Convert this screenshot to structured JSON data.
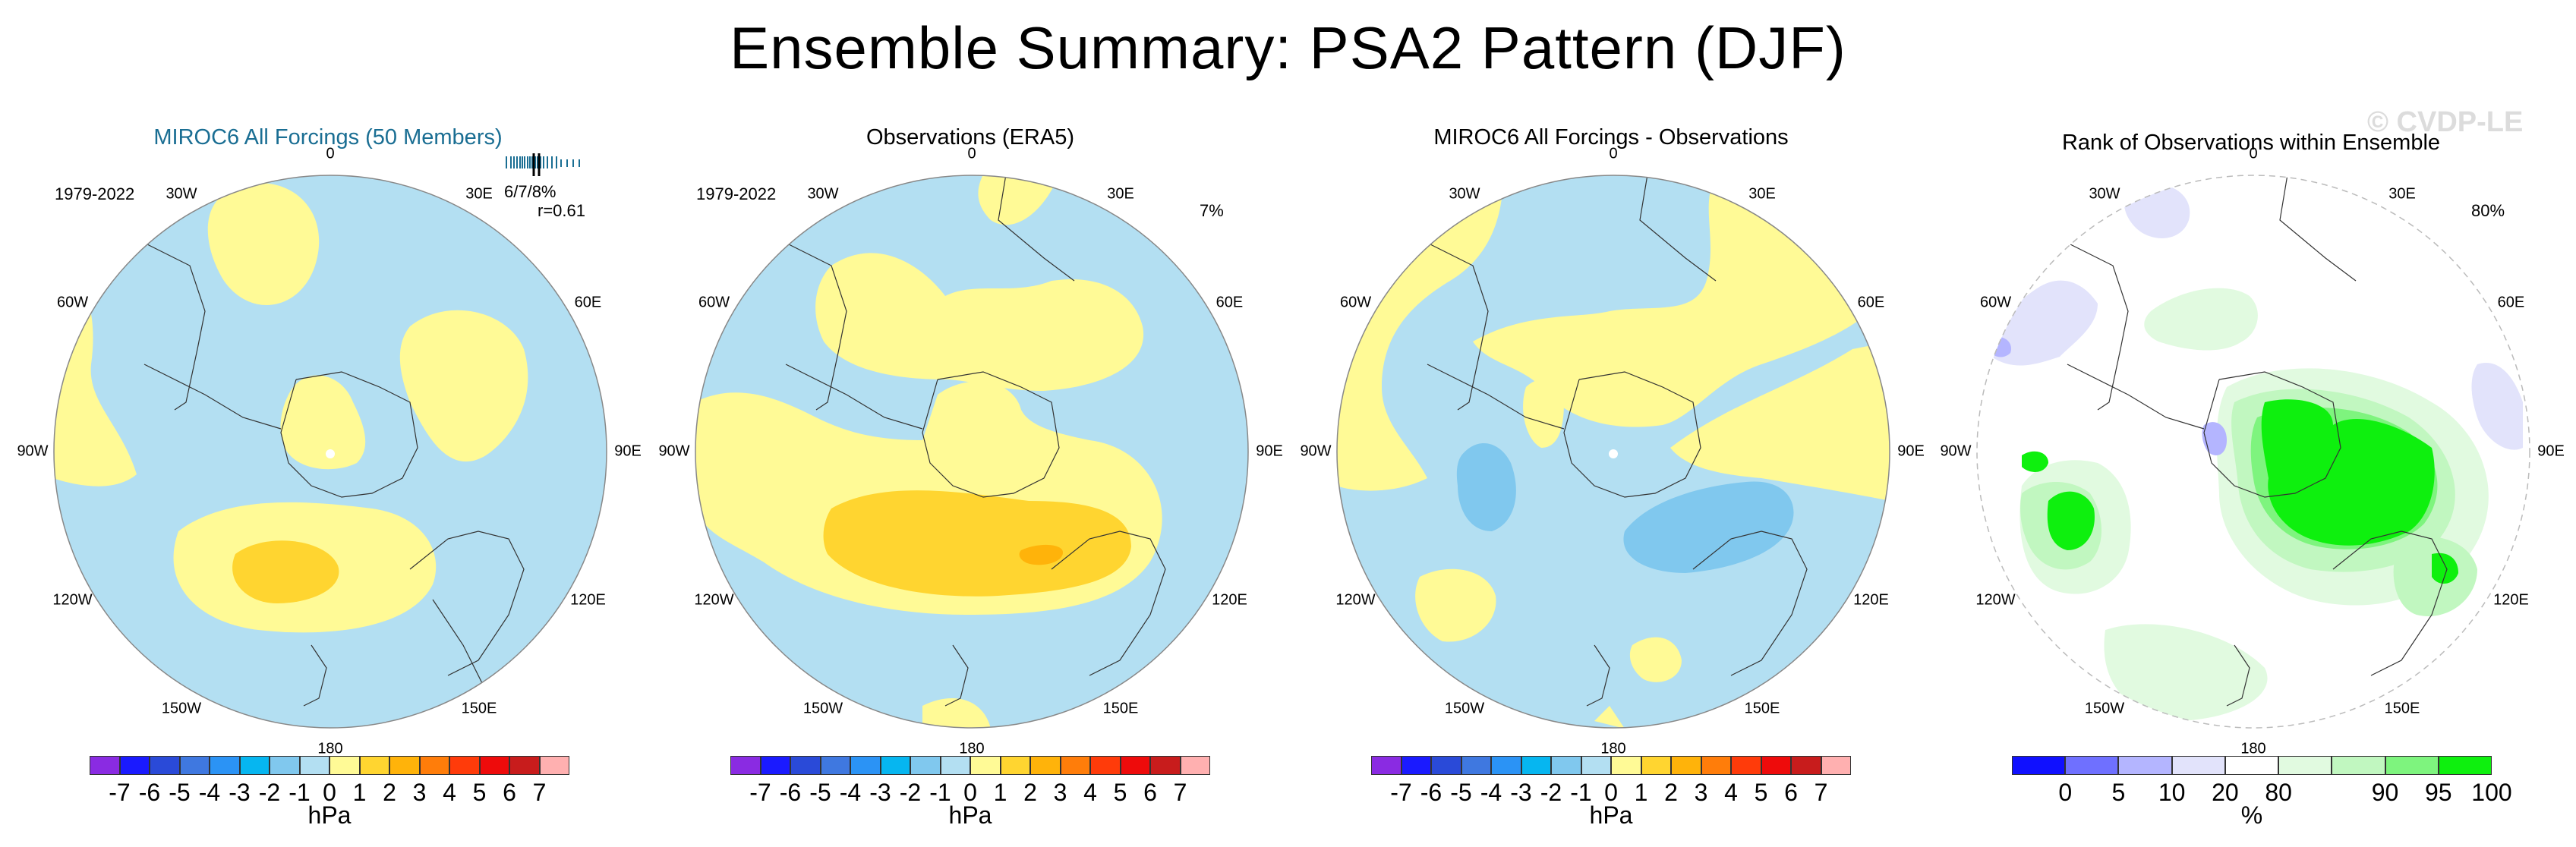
{
  "title": "Ensemble Summary: PSA2 Pattern (DJF)",
  "watermark": "© CVDP-LE",
  "panels": [
    {
      "title": "MIROC6 All Forcings (50 Members)",
      "title_color": "#1a6e93",
      "period": "1979-2022",
      "pct": "6/7/8%",
      "corr": "r=0.61"
    },
    {
      "title": "Observations (ERA5)",
      "title_color": "#000000",
      "period": "1979-2022",
      "pct": "7%"
    },
    {
      "title": "MIROC6 All Forcings - Observations",
      "title_color": "#000000"
    },
    {
      "title": "Rank of Observations within Ensemble",
      "title_color": "#000000",
      "pct": "80%"
    }
  ],
  "lon_labels": [
    "0",
    "30E",
    "60E",
    "90E",
    "120E",
    "150E",
    "180",
    "150W",
    "120W",
    "90W",
    "60W",
    "30W"
  ],
  "colorbar_hpa": {
    "colors": [
      "#8a2be2",
      "#1a1aff",
      "#2a4ad8",
      "#3f78e0",
      "#2b93f5",
      "#06b6f0",
      "#80c8ee",
      "#b3dff2",
      "#fffa96",
      "#ffd530",
      "#ffb30a",
      "#ff7d0a",
      "#ff3b0a",
      "#ee0b0b",
      "#c81c1c",
      "#ffb0b0"
    ],
    "ticks": [
      "-7",
      "-6",
      "-5",
      "-4",
      "-3",
      "-2",
      "-1",
      "0",
      "1",
      "2",
      "3",
      "4",
      "5",
      "6",
      "7"
    ],
    "unit": "hPa"
  },
  "colorbar_rank": {
    "colors": [
      "#1010ff",
      "#6f70ff",
      "#b4b5ff",
      "#e2e3fb",
      "#ffffff",
      "#e1fae0",
      "#c1f7c0",
      "#7ef47e",
      "#0ef00e"
    ],
    "ticks": [
      "0",
      "5",
      "10",
      "20",
      "80",
      "90",
      "95",
      "100"
    ],
    "unit": "%"
  },
  "colors": {
    "ocean_blue": "#b3dff2",
    "pos1": "#fffa96",
    "pos2": "#ffd530",
    "pos3": "#ffb30a",
    "neg1": "#80c8ee",
    "rank_green": "#0ef00e",
    "rank_light_green": "#c1f7c0",
    "rank_blue": "#b4b5ff"
  }
}
